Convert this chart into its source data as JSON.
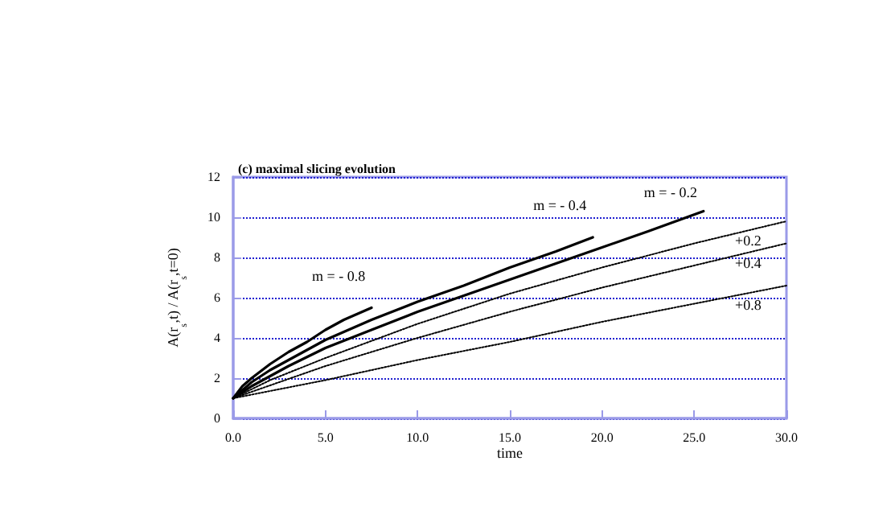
{
  "chart_data": {
    "type": "line",
    "title": "(c) maximal slicing evolution",
    "xlabel": "time",
    "ylabel": "A(r$_{s}$,t) / A(r$_{s}$,t=0)",
    "xlim": [
      0,
      30
    ],
    "xticks": [
      {
        "value": 0,
        "label": "0.0"
      },
      {
        "value": 5,
        "label": "5.0"
      },
      {
        "value": 10,
        "label": "10.0"
      },
      {
        "value": 15,
        "label": "15.0"
      },
      {
        "value": 20,
        "label": "20.0"
      },
      {
        "value": 25,
        "label": "25.0"
      },
      {
        "value": 30,
        "label": "30.0"
      }
    ],
    "ylim": [
      0,
      12
    ],
    "yticks": [
      0,
      2,
      4,
      6,
      8,
      10,
      12
    ],
    "grid": "y",
    "legend": false,
    "marker": "none",
    "series": [
      {
        "name": "m = - 0.8",
        "color": "#000000",
        "line_style": "solid",
        "x": [
          0,
          0.5,
          1,
          2,
          3,
          4,
          5,
          6,
          7.5
        ],
        "values": [
          1,
          1.6,
          2.0,
          2.7,
          3.3,
          3.8,
          4.4,
          4.9,
          5.5
        ]
      },
      {
        "name": "m = - 0.4",
        "color": "#000000",
        "line_style": "solid",
        "x": [
          0,
          1,
          2,
          3,
          5,
          7.5,
          10,
          12.5,
          15,
          17.5,
          19.5
        ],
        "values": [
          1,
          1.8,
          2.4,
          2.9,
          3.9,
          4.9,
          5.8,
          6.6,
          7.5,
          8.3,
          9.0
        ]
      },
      {
        "name": "m = - 0.2",
        "color": "#000000",
        "line_style": "solid",
        "x": [
          0,
          1,
          2,
          3,
          5,
          7.5,
          10,
          12.5,
          15,
          17.5,
          20,
          22.5,
          25.5
        ],
        "values": [
          1,
          1.6,
          2.1,
          2.6,
          3.5,
          4.4,
          5.3,
          6.1,
          6.9,
          7.7,
          8.5,
          9.3,
          10.3
        ]
      },
      {
        "name": "+0.2",
        "color": "#000000",
        "line_style": "dotted",
        "x": [
          0,
          2,
          5,
          10,
          15,
          20,
          25,
          30
        ],
        "values": [
          1,
          1.9,
          3.0,
          4.7,
          6.2,
          7.5,
          8.7,
          9.8
        ]
      },
      {
        "name": "+0.4",
        "color": "#000000",
        "line_style": "dotted",
        "x": [
          0,
          5,
          10,
          15,
          20,
          25,
          30
        ],
        "values": [
          1,
          2.6,
          4.0,
          5.3,
          6.5,
          7.6,
          8.7
        ]
      },
      {
        "name": "+0.8",
        "color": "#000000",
        "line_style": "dotted",
        "x": [
          0,
          5,
          10,
          15,
          20,
          25,
          30
        ],
        "values": [
          1,
          1.9,
          2.9,
          3.8,
          4.8,
          5.7,
          6.6
        ]
      }
    ]
  }
}
